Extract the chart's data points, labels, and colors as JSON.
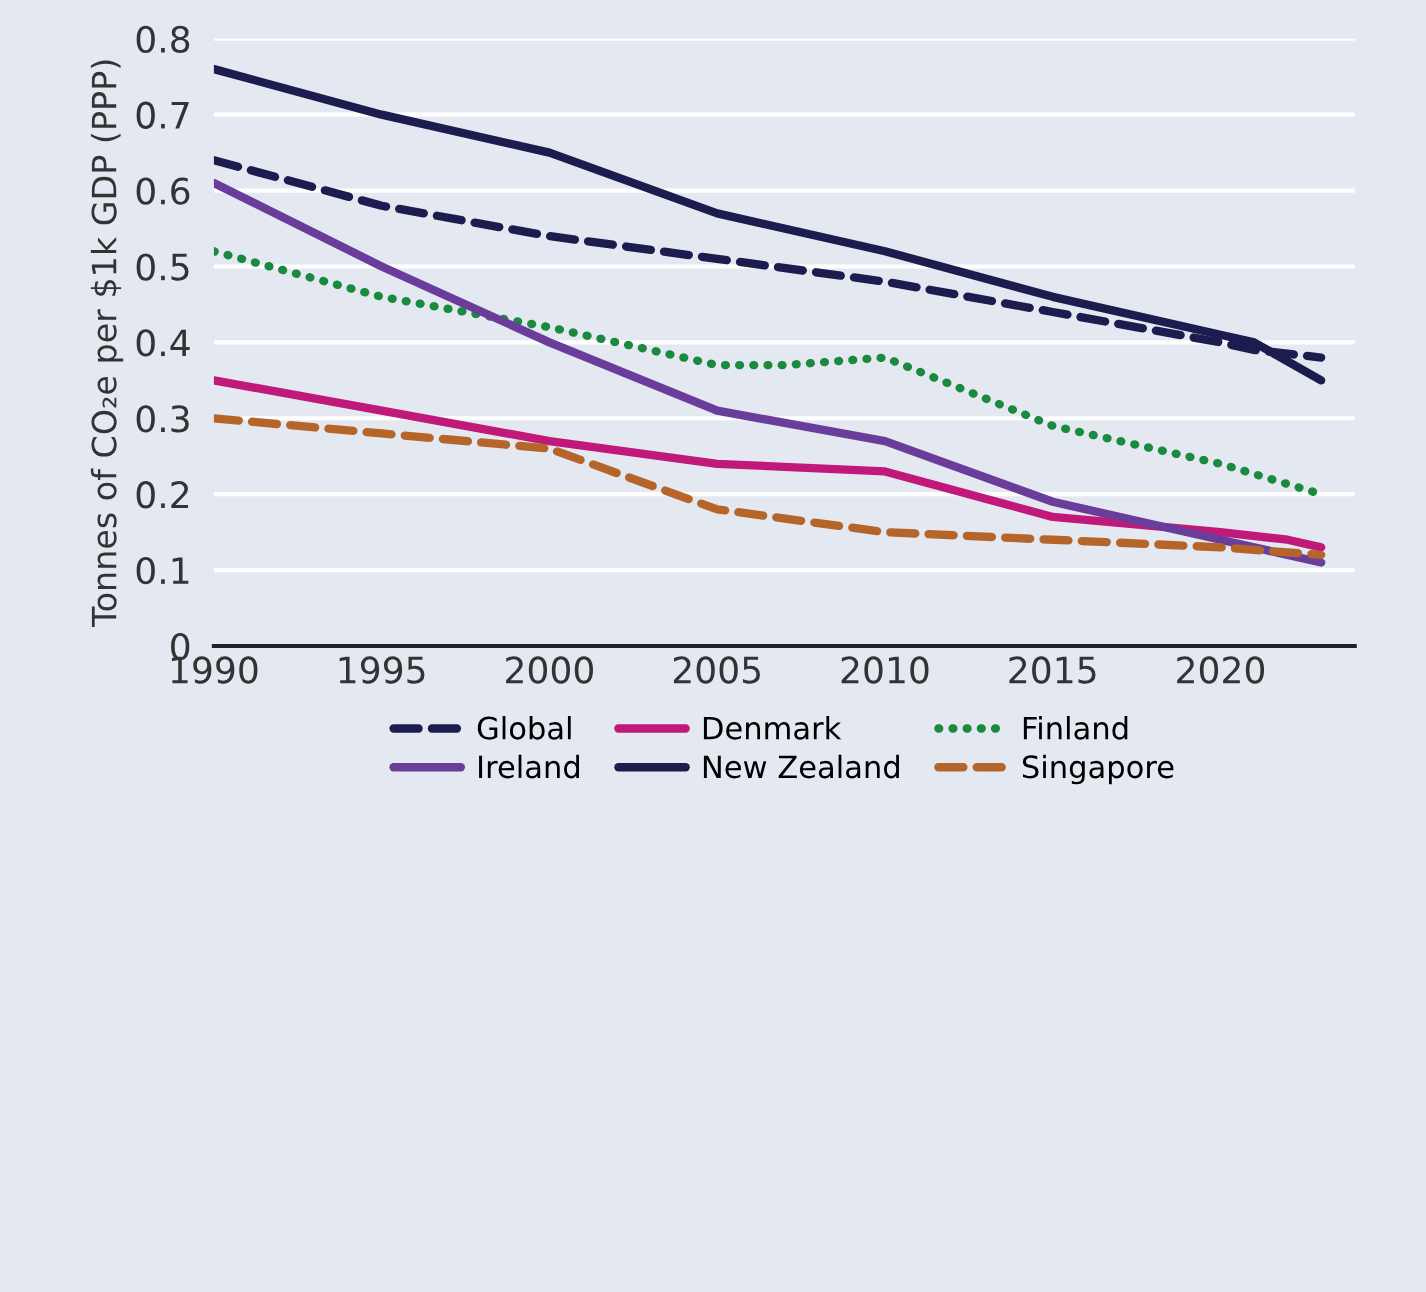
{
  "chart_data": {
    "type": "line",
    "ylabel": "Tonnes of CO₂e per $1k GDP (PPP)",
    "xlim": [
      1990,
      2024
    ],
    "xticks": [
      1990,
      1995,
      2000,
      2005,
      2010,
      2015,
      2020
    ],
    "ylim": [
      0,
      0.8
    ],
    "yticks": [
      0,
      0.1,
      0.2,
      0.3,
      0.4,
      0.5,
      0.6,
      0.7,
      0.8
    ],
    "grid": "y",
    "legend": "bottom",
    "series": [
      {
        "name": "Global",
        "color": "#1c1c4e",
        "line_style": "dashed",
        "x": [
          1990,
          1995,
          2000,
          2005,
          2010,
          2015,
          2020,
          2021,
          2023
        ],
        "values": [
          0.64,
          0.58,
          0.54,
          0.51,
          0.48,
          0.44,
          0.4,
          0.39,
          0.38
        ]
      },
      {
        "name": "Denmark",
        "color": "#c0197a",
        "line_style": "solid",
        "x": [
          1990,
          1995,
          2000,
          2005,
          2010,
          2015,
          2020,
          2022,
          2023
        ],
        "values": [
          0.35,
          0.31,
          0.27,
          0.24,
          0.23,
          0.17,
          0.15,
          0.14,
          0.13
        ]
      },
      {
        "name": "Finland",
        "color": "#198a3e",
        "line_style": "dotted",
        "x": [
          1990,
          1995,
          2000,
          2005,
          2007,
          2010,
          2015,
          2020,
          2023
        ],
        "values": [
          0.52,
          0.46,
          0.42,
          0.37,
          0.37,
          0.38,
          0.29,
          0.24,
          0.2
        ]
      },
      {
        "name": "Ireland",
        "color": "#6a3d9a",
        "line_style": "solid",
        "x": [
          1990,
          1995,
          2000,
          2005,
          2010,
          2015,
          2020,
          2023
        ],
        "values": [
          0.61,
          0.5,
          0.4,
          0.31,
          0.27,
          0.19,
          0.14,
          0.11
        ]
      },
      {
        "name": "New Zealand",
        "color": "#1c1c4e",
        "line_style": "solid",
        "x": [
          1990,
          1995,
          2000,
          2005,
          2010,
          2015,
          2020,
          2021,
          2023
        ],
        "values": [
          0.76,
          0.7,
          0.65,
          0.57,
          0.52,
          0.46,
          0.41,
          0.4,
          0.35
        ]
      },
      {
        "name": "Singapore",
        "color": "#b5652a",
        "line_style": "dashed",
        "x": [
          1990,
          1995,
          2000,
          2005,
          2010,
          2015,
          2020,
          2023
        ],
        "values": [
          0.3,
          0.28,
          0.26,
          0.18,
          0.15,
          0.14,
          0.13,
          0.12
        ]
      }
    ]
  }
}
